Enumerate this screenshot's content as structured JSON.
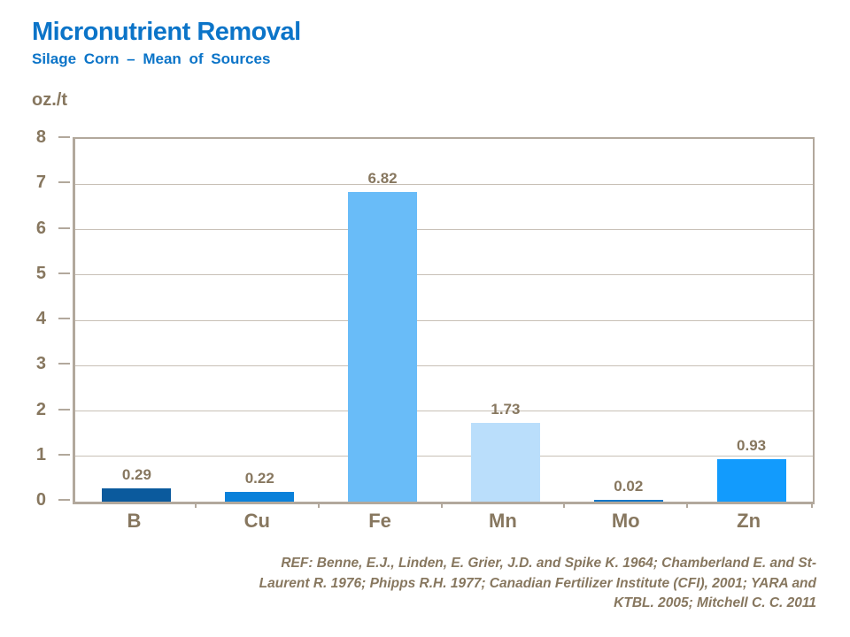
{
  "title": "Micronutrient Removal",
  "subtitle": "Silage Corn – Mean of Sources",
  "y_unit_label": "oz./t",
  "reference": {
    "lines": [
      "REF: Benne, E.J., Linden, E. Grier, J.D. and Spike K. 1964; Chamberland  E. and St-",
      "Laurent R. 1976; Phipps R.H. 1977; Canadian Fertilizer Institute (CFI), 2001; YARA and",
      "KTBL. 2005; Mitchell C. C. 2011"
    ]
  },
  "colors": {
    "title_blue": "#0b74c8",
    "text_brown": "#87775f",
    "gridline": "#c8c0b6",
    "axis": "#b2a89c",
    "background": "#ffffff"
  },
  "chart_data": {
    "type": "bar",
    "title": "Micronutrient Removal",
    "subtitle": "Silage Corn – Mean of Sources",
    "ylabel": "oz./t",
    "xlabel": "",
    "categories": [
      "B",
      "Cu",
      "Fe",
      "Mn",
      "Mo",
      "Zn"
    ],
    "values": [
      0.29,
      0.22,
      6.82,
      1.73,
      0.02,
      0.93
    ],
    "data_labels": [
      "0.29",
      "0.22",
      "6.82",
      "1.73",
      "0.02",
      "0.93"
    ],
    "bar_colors": [
      "#0b5a9d",
      "#0a81da",
      "#69bcf8",
      "#badefb",
      "#1377c8",
      "#129bfd"
    ],
    "ylim": [
      0,
      8
    ],
    "ytick_step": 1,
    "grid": true,
    "legend": "none"
  }
}
